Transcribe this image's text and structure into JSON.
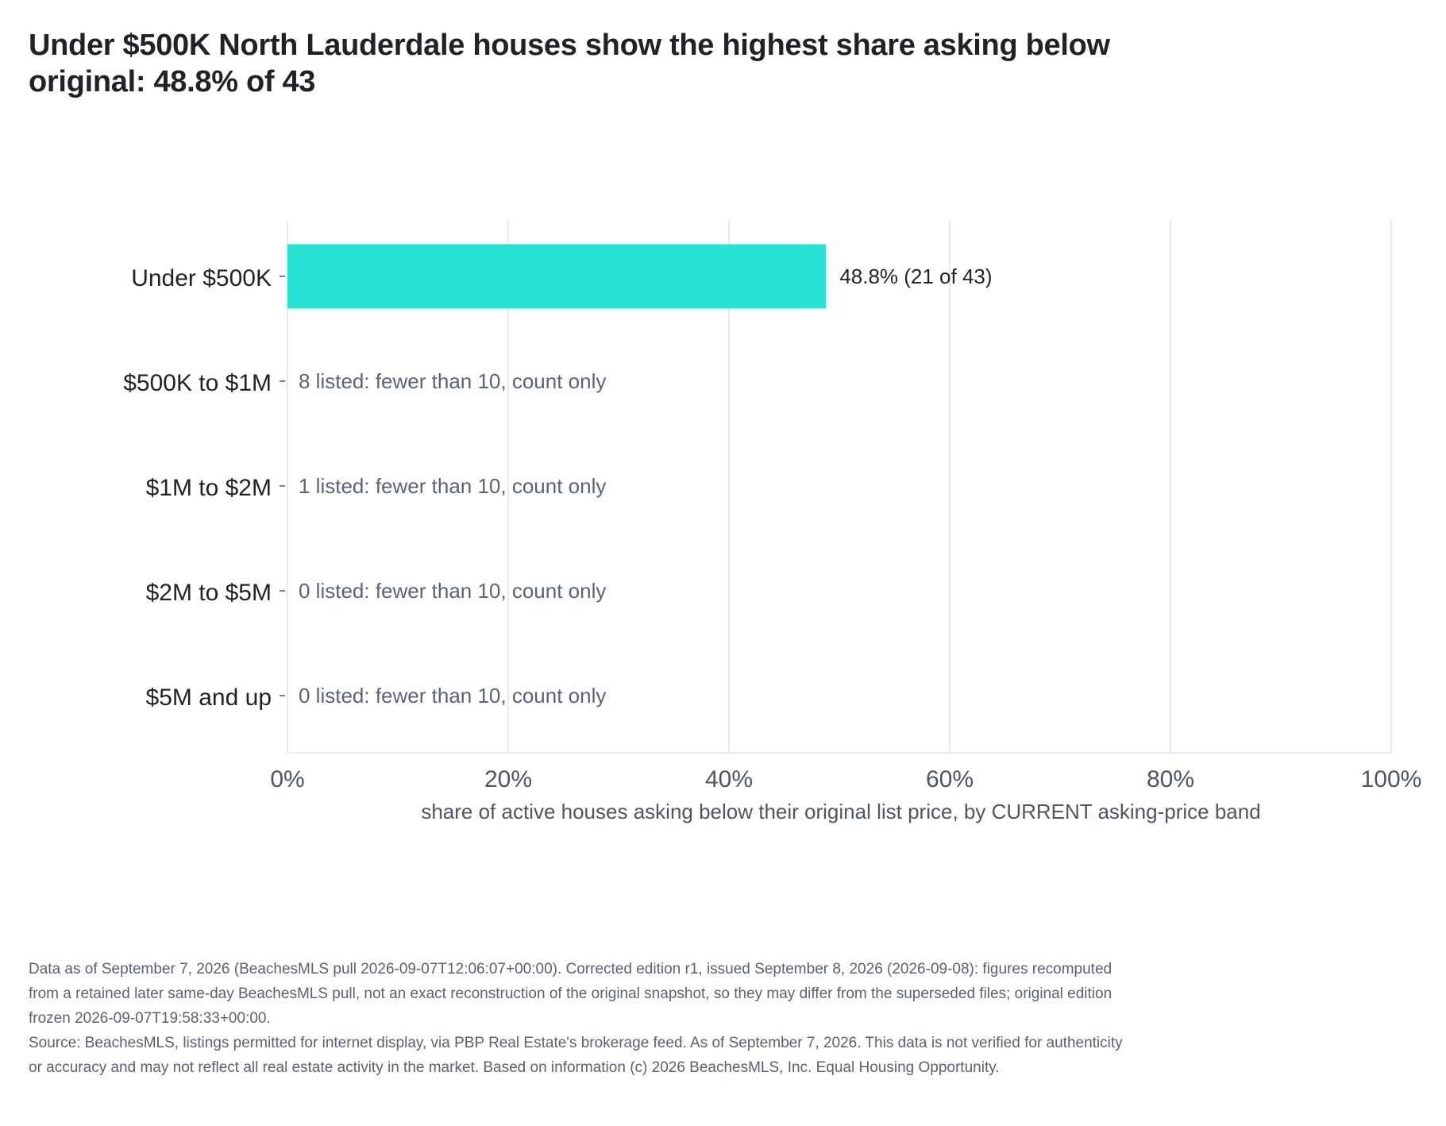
{
  "chart_data": {
    "type": "bar",
    "orientation": "horizontal",
    "title": "Under $500K North Lauderdale houses show the highest share asking below original: 48.8% of 43",
    "xlabel": "share of active houses asking below their original list price, by CURRENT asking-price band",
    "ylabel": "",
    "xlim": [
      0,
      100
    ],
    "x_ticks": [
      "0%",
      "20%",
      "40%",
      "60%",
      "80%",
      "100%"
    ],
    "grid": true,
    "bar_color": "#26e3d5",
    "categories": [
      "Under $500K",
      "$500K to $1M",
      "$1M to $2M",
      "$2M to $5M",
      "$5M and up"
    ],
    "values": [
      48.8,
      null,
      null,
      null,
      null
    ],
    "bar_labels": [
      "48.8%  (21 of 43)",
      "8 listed: fewer than 10, count only",
      "1 listed: fewer than 10, count only",
      "0 listed: fewer than 10, count only",
      "0 listed: fewer than 10, count only"
    ]
  },
  "notes": {
    "data_note": "Data as of September 7, 2026 (BeachesMLS pull 2026-09-07T12:06:07+00:00). Corrected edition r1, issued September 8, 2026 (2026-09-08): figures recomputed from a retained later same-day BeachesMLS pull, not an exact reconstruction of the original snapshot, so they may differ from the superseded files; original edition frozen 2026-09-07T19:58:33+00:00.",
    "source": "Source: BeachesMLS, listings permitted for internet display, via PBP Real Estate's brokerage feed. As of September 7, 2026. This data is not verified for authenticity or accuracy and may not reflect all real estate activity in the market. Based on information (c) 2026 BeachesMLS, Inc. Equal Housing Opportunity."
  }
}
